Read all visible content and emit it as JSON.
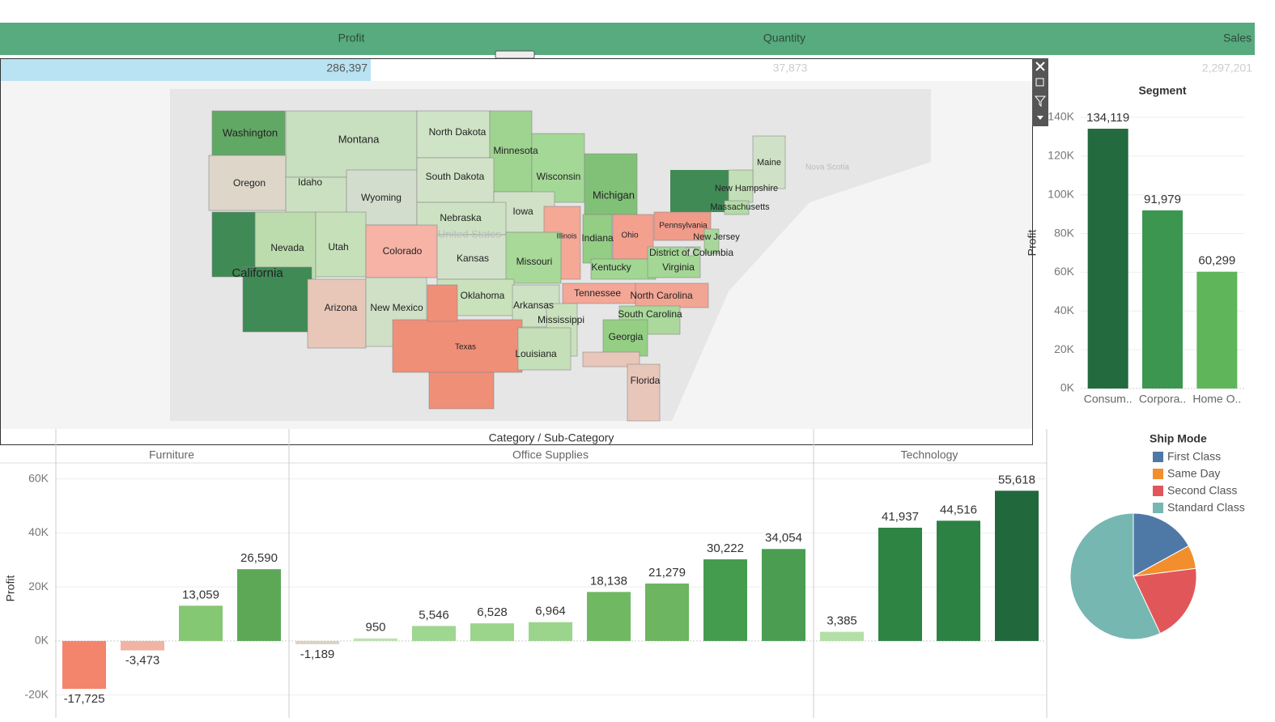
{
  "kpis": [
    {
      "label": "Profit",
      "value": "286,397"
    },
    {
      "label": "Quantity",
      "value": "37,873"
    },
    {
      "label": "Sales",
      "value": "2,297,201"
    }
  ],
  "map": {
    "states": [
      {
        "name": "Washington",
        "color": "#62a865"
      },
      {
        "name": "Montana",
        "color": "#c8dfc0"
      },
      {
        "name": "North Dakota",
        "color": "#cfe3c6"
      },
      {
        "name": "Minnesota",
        "color": "#9fd490"
      },
      {
        "name": "Wisconsin",
        "color": "#a4d896"
      },
      {
        "name": "Michigan",
        "color": "#80c177"
      },
      {
        "name": "Maine",
        "color": "#cfe1c6"
      },
      {
        "name": "New Hampshire",
        "color": "#c2dfb7"
      },
      {
        "name": "Massachusetts",
        "color": "#b3dba7"
      },
      {
        "name": "Oregon",
        "color": "#ddd6c9"
      },
      {
        "name": "Idaho",
        "color": "#cbe0c1"
      },
      {
        "name": "Wyoming",
        "color": "#d3ddcd"
      },
      {
        "name": "South Dakota",
        "color": "#d1e2c8"
      },
      {
        "name": "Iowa",
        "color": "#d0e1c7"
      },
      {
        "name": "Nebraska",
        "color": "#cde2c3"
      },
      {
        "name": "Nevada",
        "color": "#bcdcae"
      },
      {
        "name": "Utah",
        "color": "#c6e0b9"
      },
      {
        "name": "Colorado",
        "color": "#f6b3a6"
      },
      {
        "name": "Kansas",
        "color": "#d2e1c9"
      },
      {
        "name": "Illinois",
        "color": "#f5a895"
      },
      {
        "name": "Indiana",
        "color": "#94cd84"
      },
      {
        "name": "Ohio",
        "color": "#f4a08f"
      },
      {
        "name": "Pennsylvania",
        "color": "#f19b8a"
      },
      {
        "name": "New Jersey",
        "color": "#a7d899"
      },
      {
        "name": "California",
        "color": "#3f8a55"
      },
      {
        "name": "Missouri",
        "color": "#a8d998"
      },
      {
        "name": "Kentucky",
        "color": "#a1d693"
      },
      {
        "name": "Virginia",
        "color": "#a4d796"
      },
      {
        "name": "District of Columbia",
        "color": "#cfe2c6"
      },
      {
        "name": "Arizona",
        "color": "#e8c7b8"
      },
      {
        "name": "New Mexico",
        "color": "#d0e0c7"
      },
      {
        "name": "Oklahoma",
        "color": "#c9e2bc"
      },
      {
        "name": "Tennessee",
        "color": "#f4a797"
      },
      {
        "name": "North Carolina",
        "color": "#f3a594"
      },
      {
        "name": "Arkansas",
        "color": "#cde2c3"
      },
      {
        "name": "South Carolina",
        "color": "#aad99b"
      },
      {
        "name": "Mississippi",
        "color": "#c9e1bd"
      },
      {
        "name": "Texas",
        "color": "#f08f78"
      },
      {
        "name": "Louisiana",
        "color": "#c5e0b9"
      },
      {
        "name": "Georgia",
        "color": "#94cf84"
      },
      {
        "name": "Florida",
        "color": "#e9c6ba"
      }
    ],
    "labels": [
      "United States",
      "Nova Scotia"
    ]
  },
  "chart_data": [
    {
      "type": "bar",
      "title": "Segment",
      "y_label": "Profit",
      "categories": [
        "Consum..",
        "Corpora..",
        "Home O.."
      ],
      "values": [
        134119,
        91979,
        60299
      ],
      "value_labels": [
        "134,119",
        "91,979",
        "60,299"
      ],
      "colors": [
        "#236a3e",
        "#3d9650",
        "#5fb55a"
      ],
      "ylim": [
        0,
        145000
      ],
      "yticks": [
        {
          "value": 0,
          "label": "0K"
        },
        {
          "value": 20000,
          "label": "20K"
        },
        {
          "value": 40000,
          "label": "40K"
        },
        {
          "value": 60000,
          "label": "60K"
        },
        {
          "value": 80000,
          "label": "80K"
        },
        {
          "value": 100000,
          "label": "100K"
        },
        {
          "value": 120000,
          "label": "120K"
        },
        {
          "value": 140000,
          "label": "140K"
        }
      ],
      "grid": true
    },
    {
      "type": "bar",
      "title": "Category / Sub-Category",
      "y_label": "Profit",
      "ylim": [
        -28500,
        65000
      ],
      "yticks": [
        {
          "value": -20000,
          "label": "-20K"
        },
        {
          "value": 0,
          "label": "0K"
        },
        {
          "value": 20000,
          "label": "20K"
        },
        {
          "value": 40000,
          "label": "40K"
        },
        {
          "value": 60000,
          "label": "60K"
        }
      ],
      "grid": true,
      "series": [
        {
          "name": "Furniture",
          "values": [
            -17725,
            -3473,
            13059,
            26590
          ],
          "value_labels": [
            "-17,725",
            "-3,473",
            "13,059",
            "26,590"
          ],
          "colors": [
            "#f4856d",
            "#f0b3a4",
            "#85c874",
            "#5ca856"
          ]
        },
        {
          "name": "Office Supplies",
          "values": [
            -1189,
            950,
            5546,
            6528,
            6964,
            18138,
            21279,
            30222,
            34054
          ],
          "value_labels": [
            "-1,189",
            "950",
            "5,546",
            "6,528",
            "6,964",
            "18,138",
            "21,279",
            "30,222",
            "34,054"
          ],
          "colors": [
            "#ddd1c4",
            "#bfe1b1",
            "#9ed78f",
            "#9bd58c",
            "#9ad58b",
            "#70b862",
            "#6db560",
            "#459c4f",
            "#4a9d51"
          ]
        },
        {
          "name": "Technology",
          "values": [
            3385,
            41937,
            44516,
            55618
          ],
          "value_labels": [
            "3,385",
            "41,937",
            "44,516",
            "55,618"
          ],
          "colors": [
            "#b4dfa6",
            "#2e8443",
            "#2c8242",
            "#21683d"
          ]
        }
      ]
    },
    {
      "type": "pie",
      "title": "Ship Mode",
      "categories": [
        "First Class",
        "Same Day",
        "Second Class",
        "Standard Class"
      ],
      "values": [
        17,
        6,
        20,
        57
      ],
      "colors": [
        "#4e79a7",
        "#f28e2b",
        "#e15759",
        "#76b7b2"
      ]
    }
  ]
}
